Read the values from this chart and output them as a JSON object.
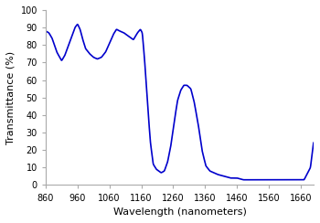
{
  "title": "",
  "xlabel": "Wavelength (nanometers)",
  "ylabel": "Transmittance (%)",
  "xlim": [
    860,
    1700
  ],
  "ylim": [
    0,
    100
  ],
  "xticks": [
    860,
    960,
    1060,
    1160,
    1260,
    1360,
    1460,
    1560,
    1660
  ],
  "yticks": [
    0,
    10,
    20,
    30,
    40,
    50,
    60,
    70,
    80,
    90,
    100
  ],
  "line_color": "#0000cc",
  "line_width": 1.2,
  "background_color": "#ffffff",
  "figsize": [
    3.5,
    2.44
  ],
  "dpi": 100,
  "key_wl": [
    860,
    870,
    880,
    895,
    910,
    920,
    930,
    942,
    952,
    960,
    968,
    975,
    985,
    998,
    1010,
    1022,
    1035,
    1048,
    1060,
    1072,
    1082,
    1092,
    1105,
    1120,
    1135,
    1148,
    1157,
    1163,
    1170,
    1178,
    1188,
    1197,
    1207,
    1215,
    1222,
    1232,
    1242,
    1252,
    1263,
    1273,
    1283,
    1293,
    1303,
    1315,
    1325,
    1338,
    1350,
    1362,
    1375,
    1388,
    1400,
    1420,
    1440,
    1460,
    1480,
    1500,
    1530,
    1560,
    1590,
    1620,
    1650,
    1670,
    1690,
    1700
  ],
  "key_T": [
    88,
    87,
    84,
    76,
    71,
    74,
    79,
    85,
    90,
    92,
    89,
    84,
    78,
    75,
    73,
    72,
    73,
    76,
    81,
    86,
    89,
    88,
    87,
    85,
    83,
    87,
    89,
    87,
    72,
    50,
    25,
    12,
    9,
    8,
    7,
    8,
    13,
    22,
    36,
    48,
    54,
    57,
    57,
    55,
    48,
    35,
    20,
    11,
    8,
    7,
    6,
    5,
    4,
    4,
    3,
    3,
    3,
    3,
    3,
    3,
    3,
    3,
    10,
    25
  ]
}
